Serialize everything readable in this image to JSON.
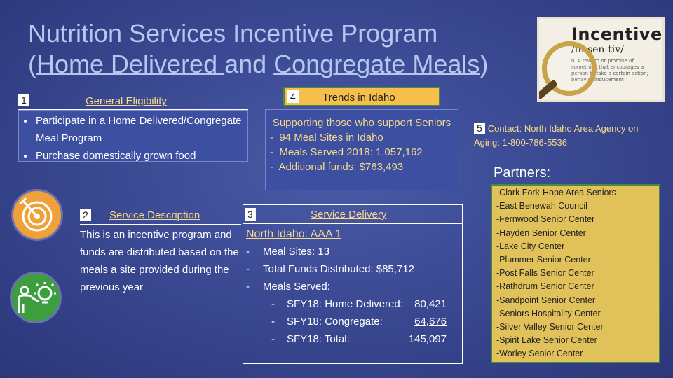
{
  "title": {
    "line1": "Nutrition Services Incentive Program",
    "open_paren": "(",
    "home_delivered": "Home Delivered ",
    "and": "and ",
    "congregate": "Congregate Meals",
    "close_paren": ")"
  },
  "logo": {
    "word": "Incentive",
    "pronunciation": "/in-sen-tiv/",
    "definition": "n. A reward or promise of something that encourages a person to take a certain action; behavior inducement"
  },
  "icons": {
    "target": "target-arrow-icon",
    "idea": "presenter-lightbulb-icon"
  },
  "section1": {
    "number": "1",
    "label": "General Eligibility",
    "items": [
      "Participate in a Home Delivered/Congregate Meal Program",
      "Purchase domestically grown food"
    ]
  },
  "section4": {
    "number": "4",
    "label": "Trends in Idaho",
    "lead": "Supporting those who support Seniors",
    "items": [
      "94 Meal Sites in Idaho",
      "Meals Served 2018: 1,057,162",
      "Additional funds: $763,493"
    ]
  },
  "section2": {
    "number": "2",
    "label": "Service Description",
    "body": "This is an incentive program and funds are distributed based on the meals a site provided during the previous year"
  },
  "section3": {
    "number": "3",
    "label": "Service Delivery",
    "subtitle": "North Idaho: AAA 1",
    "items": [
      "Meal Sites: 13",
      "Total Funds Distributed: $85,712",
      "Meals Served:"
    ],
    "meals": [
      {
        "label": "SFY18: Home Delivered: ",
        "value": "80,421"
      },
      {
        "label": "SFY18: Congregate:",
        "value": "64,676"
      },
      {
        "label": "SFY18: Total:",
        "value": "145,097"
      }
    ]
  },
  "section5": {
    "number": "5",
    "contact": "Contact: North Idaho Area Agency on Aging: 1-800-786-5536"
  },
  "partners": {
    "title": "Partners:",
    "items": [
      "-Clark Fork-Hope Area Seniors",
      "-East Benewah Council",
      "-Fernwood Senior Center",
      "-Hayden Senior Center",
      "-Lake City Center",
      "-Plummer Senior Center",
      "-Post Falls Senior Center",
      "-Rathdrum Senior Center",
      "-Sandpoint Senior Center",
      "-Seniors Hospitality Center",
      "-Silver Valley Senior Center",
      "-Spirit Lake Senior Center",
      "-Worley Senior Center"
    ]
  }
}
